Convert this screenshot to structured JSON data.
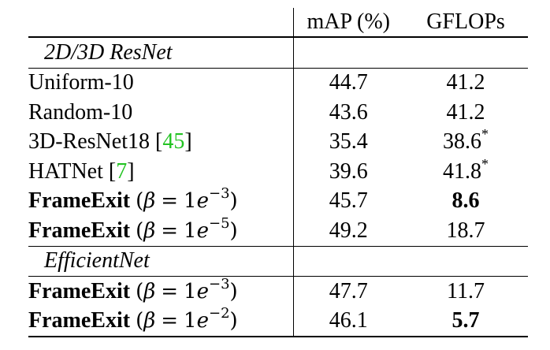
{
  "table": {
    "headers": [
      "",
      "mAP (%)",
      "GFLOPs"
    ],
    "sections": [
      {
        "label": "2D/3D ResNet",
        "rows": [
          {
            "method": "Uniform-10",
            "citation": "",
            "beta_exp": "",
            "map": "44.7",
            "map_bold": false,
            "gflops": "41.2",
            "gflops_bold": false,
            "gflops_mark": ""
          },
          {
            "method": "Random-10",
            "citation": "",
            "beta_exp": "",
            "map": "43.6",
            "map_bold": false,
            "gflops": "41.2",
            "gflops_bold": false,
            "gflops_mark": ""
          },
          {
            "method": "3D-ResNet18",
            "citation": "45",
            "beta_exp": "",
            "map": "35.4",
            "map_bold": false,
            "gflops": "38.6",
            "gflops_bold": false,
            "gflops_mark": "*"
          },
          {
            "method": "HATNet",
            "citation": "7",
            "beta_exp": "",
            "map": "39.6",
            "map_bold": false,
            "gflops": "41.8",
            "gflops_bold": false,
            "gflops_mark": "*"
          },
          {
            "method": "FrameExit",
            "citation": "",
            "beta_exp": "−3",
            "map": "45.7",
            "map_bold": false,
            "gflops": "8.6",
            "gflops_bold": true,
            "gflops_mark": ""
          },
          {
            "method": "FrameExit",
            "citation": "",
            "beta_exp": "−5",
            "map": "49.2",
            "map_bold": true,
            "gflops": "18.7",
            "gflops_bold": false,
            "gflops_mark": ""
          }
        ]
      },
      {
        "label": "EfficientNet",
        "rows": [
          {
            "method": "FrameExit",
            "citation": "",
            "beta_exp": "−3",
            "map": "47.7",
            "map_bold": true,
            "gflops": "11.7",
            "gflops_bold": false,
            "gflops_mark": ""
          },
          {
            "method": "FrameExit",
            "citation": "",
            "beta_exp": "−2",
            "map": "46.1",
            "map_bold": false,
            "gflops": "5.7",
            "gflops_bold": true,
            "gflops_mark": ""
          }
        ]
      }
    ],
    "math": {
      "beta": "β",
      "equals": "=",
      "base": "1",
      "e": "e",
      "open": "(",
      "close": ")"
    }
  }
}
